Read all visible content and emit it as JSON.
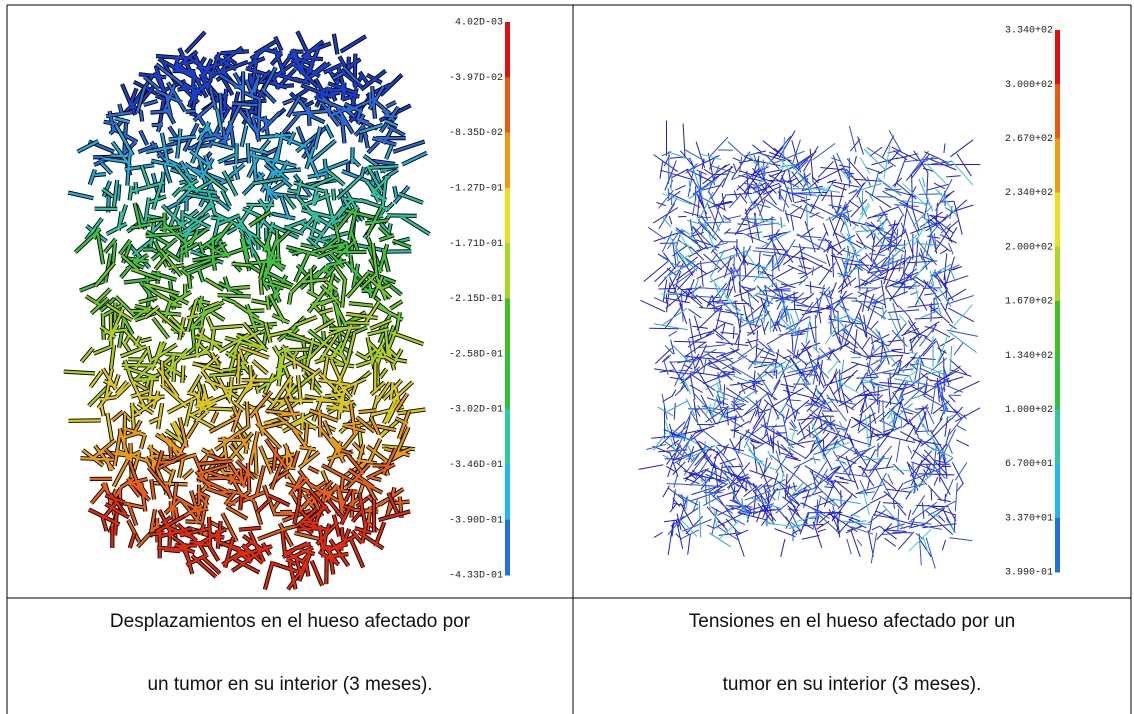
{
  "left": {
    "colorbar_labels": [
      "4.02D-03",
      "-3.97D-02",
      "-8.35D-02",
      "-1.27D-01",
      "-1.71D-01",
      "-2.15D-01",
      "-2.58D-01",
      "-3.02D-01",
      "-3.46D-01",
      "-3.90D-01",
      "-4.33D-01"
    ],
    "caption_lines": [
      "Desplazamientos en el hueso afectado por",
      "un tumor en su interior (3 meses)."
    ]
  },
  "right": {
    "colorbar_labels": [
      "3.340+02",
      "3.000+02",
      "2.670+02",
      "2.340+02",
      "2.000+02",
      "1.670+02",
      "1.340+02",
      "1.000+02",
      "6.700+01",
      "3.370+01",
      "3.990-01"
    ],
    "caption_lines": [
      "Tensiones en el hueso afectado por un",
      "tumor en su interior (3 meses)."
    ]
  }
}
